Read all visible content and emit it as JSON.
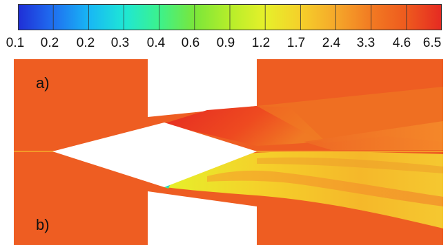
{
  "colorbar": {
    "stops": [
      "#1f2ed6",
      "#1f6ff0",
      "#18b6f5",
      "#1ee6d6",
      "#3cf28c",
      "#7ae63a",
      "#b6ee2a",
      "#e6f02a",
      "#f5d02a",
      "#f5a82a",
      "#f27a22",
      "#ee5a1e",
      "#e52a22"
    ],
    "tick_labels": [
      "0.1",
      "0.2",
      "0.2",
      "0.3",
      "0.4",
      "0.6",
      "0.9",
      "1.2",
      "1.7",
      "2.4",
      "3.3",
      "4.6",
      "6.5"
    ]
  },
  "panels": [
    {
      "label": "a)"
    },
    {
      "label": "b)"
    }
  ],
  "colors": {
    "background": "#ee5d22",
    "hot": "#e52a22",
    "mid": "#f5a82a",
    "cool": "#e6f02a",
    "gap": "#ffffff"
  }
}
